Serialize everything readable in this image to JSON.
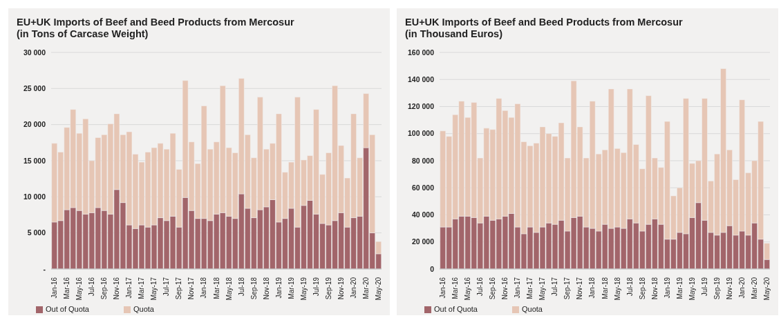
{
  "chart_data": [
    {
      "type": "bar",
      "title": "EU+UK Imports of Beef and Beed Products from Mercosur\n(in Tons of Carcase Weight)",
      "categories": [
        "Jan-16",
        null,
        "Mar-16",
        null,
        "May-16",
        null,
        "Jul-16",
        null,
        "Sep-16",
        null,
        "Nov-16",
        null,
        "Jan-17",
        null,
        "Mar-17",
        null,
        "May-17",
        null,
        "Jul-17",
        null,
        "Sep-17",
        null,
        "Nov-17",
        null,
        "Jan-18",
        null,
        "Mar-18",
        null,
        "May-18",
        null,
        "Jul-18",
        null,
        "Sep-18",
        null,
        "Nov-18",
        null,
        "Jan-19",
        null,
        "Mar-19",
        null,
        "May-19",
        null,
        "Jul-19",
        null,
        "Sep-19",
        null,
        "Nov-19",
        null,
        "Jan-20",
        null,
        "Mar-20",
        null,
        "May-20"
      ],
      "stacked": true,
      "series": [
        {
          "name": "Out of Quota",
          "color": "#a2656a",
          "values": [
            6500,
            6700,
            8200,
            8500,
            8100,
            7600,
            7800,
            8500,
            8100,
            7600,
            11000,
            9200,
            6100,
            5600,
            6100,
            5800,
            6100,
            7100,
            6700,
            7300,
            5800,
            9900,
            8100,
            7000,
            7000,
            6700,
            7600,
            7800,
            7300,
            7000,
            10400,
            8400,
            7100,
            8200,
            8600,
            9600,
            6500,
            7000,
            8400,
            5800,
            8800,
            9500,
            7600,
            6300,
            6100,
            6700,
            7800,
            5800,
            7100,
            7300,
            16800,
            5000,
            2100
          ]
        },
        {
          "name": "Quota",
          "color": "#e6c6b5",
          "values": [
            10900,
            9500,
            11400,
            13600,
            10700,
            13200,
            7200,
            9700,
            10500,
            12500,
            10500,
            9400,
            12900,
            10300,
            8700,
            10400,
            10700,
            10300,
            9900,
            11500,
            8000,
            16200,
            9500,
            7600,
            15600,
            9900,
            10000,
            17600,
            9500,
            9100,
            16000,
            10200,
            8300,
            15600,
            8000,
            7800,
            15000,
            6400,
            6400,
            18000,
            6300,
            6200,
            14500,
            6800,
            10000,
            18700,
            9300,
            6800,
            14400,
            8100,
            7500,
            13600,
            1700
          ]
        }
      ],
      "ylim": [
        0,
        30000
      ],
      "yticks": [
        {
          "value": 0,
          "label": "-"
        },
        {
          "value": 5000,
          "label": "5 000"
        },
        {
          "value": 10000,
          "label": "10 000"
        },
        {
          "value": 15000,
          "label": "15 000"
        },
        {
          "value": 20000,
          "label": "20 000"
        },
        {
          "value": 25000,
          "label": "25 000"
        },
        {
          "value": 30000,
          "label": "30 000"
        }
      ],
      "grid": "y",
      "legend": "bottom left"
    },
    {
      "type": "bar",
      "title": "EU+UK Imports of Beef and Beed Products from Mercosur\n(in Thousand Euros)",
      "categories": [
        "Jan-16",
        null,
        "Mar-16",
        null,
        "May-16",
        null,
        "Jul-16",
        null,
        "Sep-16",
        null,
        "Nov-16",
        null,
        "Jan-17",
        null,
        "Mar-17",
        null,
        "May-17",
        null,
        "Jul-17",
        null,
        "Sep-17",
        null,
        "Nov-17",
        null,
        "Jan-18",
        null,
        "Mar-18",
        null,
        "May-18",
        null,
        "Jul-18",
        null,
        "Sep-18",
        null,
        "Nov-18",
        null,
        "Jan-19",
        null,
        "Mar-19",
        null,
        "May-19",
        null,
        "Jul-19",
        null,
        "Sep-19",
        null,
        "Nov-19",
        null,
        "Jan-20",
        null,
        "Mar-20",
        null,
        "May-20"
      ],
      "stacked": true,
      "series": [
        {
          "name": "Out of Quota",
          "color": "#a2656a",
          "values": [
            31000,
            31000,
            37000,
            39000,
            39000,
            38000,
            34000,
            39000,
            36000,
            37000,
            39000,
            41000,
            31000,
            26000,
            31000,
            27000,
            31000,
            34000,
            33000,
            36000,
            28000,
            38000,
            39000,
            31000,
            30000,
            28000,
            33000,
            30000,
            31000,
            30000,
            37000,
            34000,
            28000,
            33000,
            37000,
            33000,
            22000,
            22000,
            27000,
            26000,
            38000,
            49000,
            36000,
            27000,
            25000,
            27000,
            32000,
            25000,
            28000,
            25000,
            34000,
            22000,
            7000
          ]
        },
        {
          "name": "Quota",
          "color": "#e6c6b5",
          "values": [
            71000,
            67000,
            77000,
            85000,
            73000,
            85000,
            48000,
            65000,
            67000,
            89000,
            78000,
            71000,
            91000,
            68000,
            60000,
            66000,
            74000,
            66000,
            65000,
            72000,
            54000,
            101000,
            66000,
            51000,
            94000,
            57000,
            55000,
            103000,
            58000,
            56000,
            96000,
            58000,
            46000,
            95000,
            45000,
            42000,
            87000,
            32000,
            33000,
            100000,
            40000,
            31000,
            90000,
            38000,
            60000,
            121000,
            56000,
            41000,
            97000,
            46000,
            46000,
            87000,
            12000
          ]
        }
      ],
      "ylim": [
        0,
        160000
      ],
      "yticks": [
        0,
        {
          "value": 20000,
          "label": "20 000"
        },
        {
          "value": 40000,
          "label": "40 000"
        },
        {
          "value": 60000,
          "label": "60 000"
        },
        {
          "value": 80000,
          "label": "80 000"
        },
        {
          "value": 100000,
          "label": "100 000"
        },
        {
          "value": 120000,
          "label": "120 000"
        },
        {
          "value": 140000,
          "label": "140 000"
        },
        {
          "value": 160000,
          "label": "160 000"
        }
      ],
      "grid": "y",
      "legend": "bottom left"
    }
  ]
}
